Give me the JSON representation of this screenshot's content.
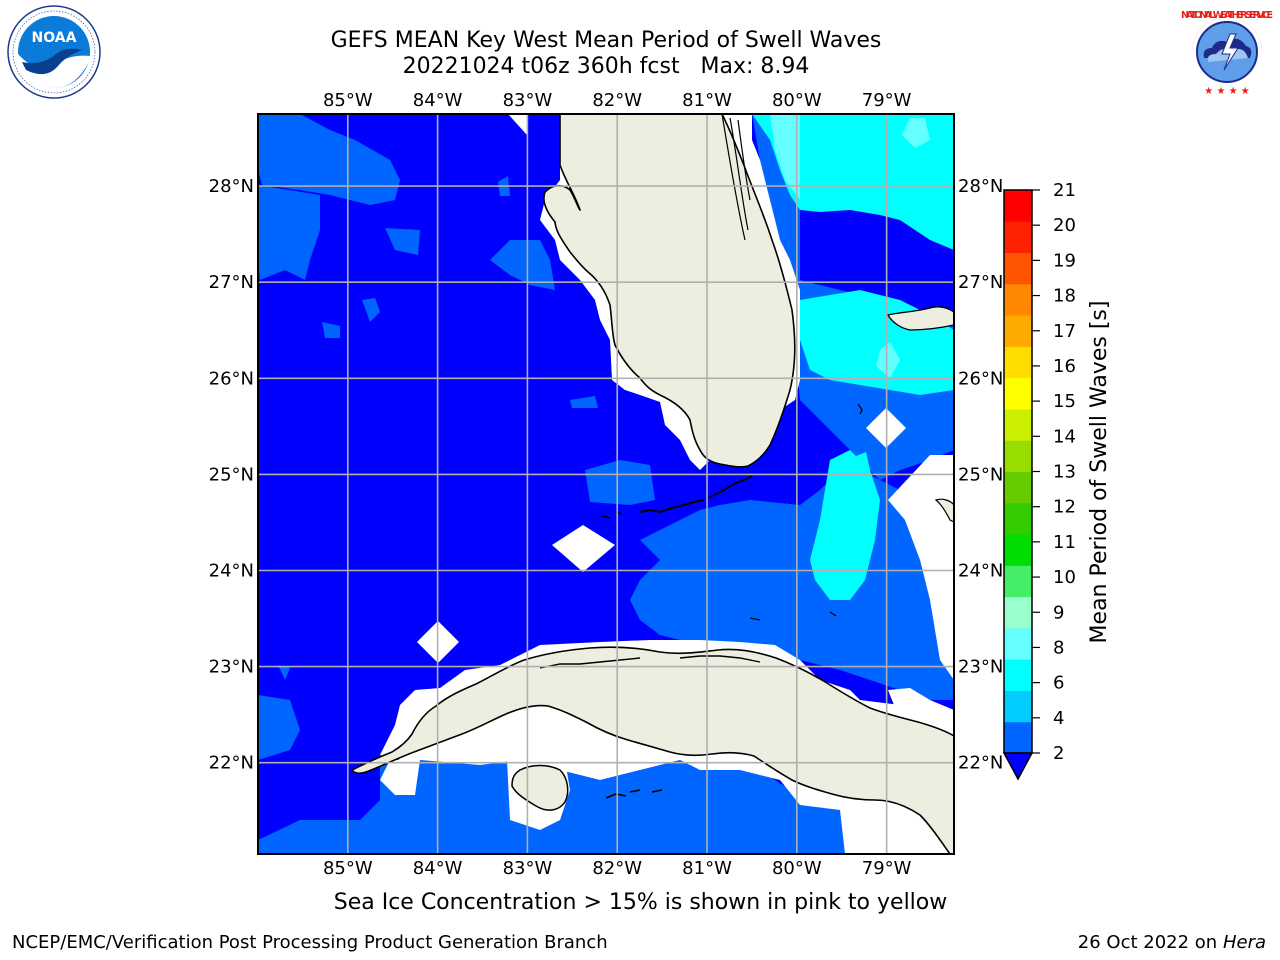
{
  "title": {
    "line1": "GEFS MEAN Key West Mean Period of Swell Waves",
    "line2": "20221024 t06z 360h fcst   Max: 8.94"
  },
  "map": {
    "lon_ticks": [
      "85°W",
      "84°W",
      "83°W",
      "82°W",
      "81°W",
      "80°W",
      "79°W"
    ],
    "lat_ticks": [
      "28°N",
      "27°N",
      "26°N",
      "25°N",
      "24°N",
      "23°N",
      "22°N"
    ],
    "lon_range": [
      -86,
      -78.25
    ],
    "lat_range": [
      21.05,
      28.75
    ],
    "ocean_color": "#0000ff",
    "land_color": "#eeeee0",
    "coastline_color": "#000000",
    "gridlines": true
  },
  "colorbar": {
    "label": "Mean Period of Swell Waves [s]",
    "ticks": [
      "2",
      "4",
      "6",
      "8",
      "9",
      "10",
      "11",
      "12",
      "13",
      "14",
      "15",
      "16",
      "17",
      "18",
      "19",
      "20",
      "21"
    ],
    "colors": [
      "#0066ff",
      "#00ccff",
      "#00ffff",
      "#66ffff",
      "#99ffcc",
      "#44ee66",
      "#00dd00",
      "#33cc00",
      "#66cc00",
      "#99dd00",
      "#ccee00",
      "#ffff00",
      "#ffdd00",
      "#ffaa00",
      "#ff8800",
      "#ff5500",
      "#ff2200",
      "#ff0000"
    ],
    "extend_color": "#0000ff"
  },
  "caption": "Sea Ice Concentration > 15% is shown in pink to yellow",
  "footer": {
    "left": "NCEP/EMC/Verification Post Processing Product Generation Branch",
    "right_date": "26 Oct 2022 on ",
    "right_host": "Hera"
  },
  "logos": {
    "noaa_text": "NOAA",
    "nws_text": "NATIONAL WEATHER SERVICE"
  }
}
